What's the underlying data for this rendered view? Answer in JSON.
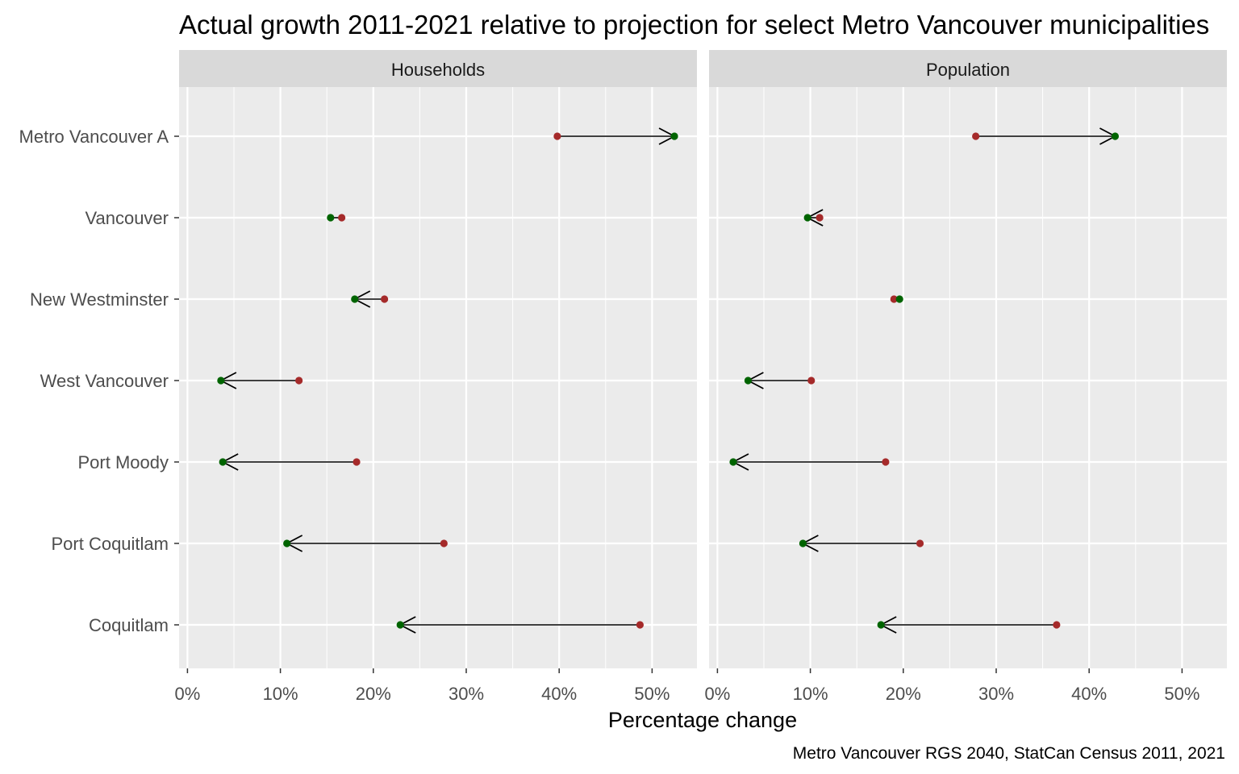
{
  "chart_data": {
    "type": "dumbbell-arrow",
    "title": "Actual growth 2011-2021 relative to projection for select Metro Vancouver municipalities",
    "xlabel": "Percentage change",
    "ylabel": "",
    "caption": "Metro Vancouver RGS 2040, StatCan Census 2011, 2021",
    "xlim": [
      0,
      0.55
    ],
    "x_ticks": [
      0,
      0.1,
      0.2,
      0.3,
      0.4,
      0.5
    ],
    "x_tick_labels": [
      "0%",
      "10%",
      "20%",
      "30%",
      "40%",
      "50%"
    ],
    "categories": [
      "Metro Vancouver A",
      "Vancouver",
      "New Westminster",
      "West Vancouver",
      "Port Moody",
      "Port Coquitlam",
      "Coquitlam"
    ],
    "grid": true,
    "colors": {
      "projected": "#a52a2a",
      "actual": "#006400",
      "arrow": "#000000",
      "panel_bg": "#ebebeb",
      "strip_bg": "#d9d9d9",
      "grid": "#ffffff"
    },
    "panels": [
      {
        "name": "Households",
        "projected": [
          0.398,
          0.166,
          0.212,
          0.12,
          0.182,
          0.276,
          0.487
        ],
        "actual": [
          0.524,
          0.154,
          0.18,
          0.036,
          0.038,
          0.107,
          0.229
        ]
      },
      {
        "name": "Population",
        "projected": [
          0.278,
          0.11,
          0.19,
          0.101,
          0.181,
          0.218,
          0.365
        ],
        "actual": [
          0.428,
          0.097,
          0.196,
          0.033,
          0.017,
          0.092,
          0.176
        ]
      }
    ]
  }
}
